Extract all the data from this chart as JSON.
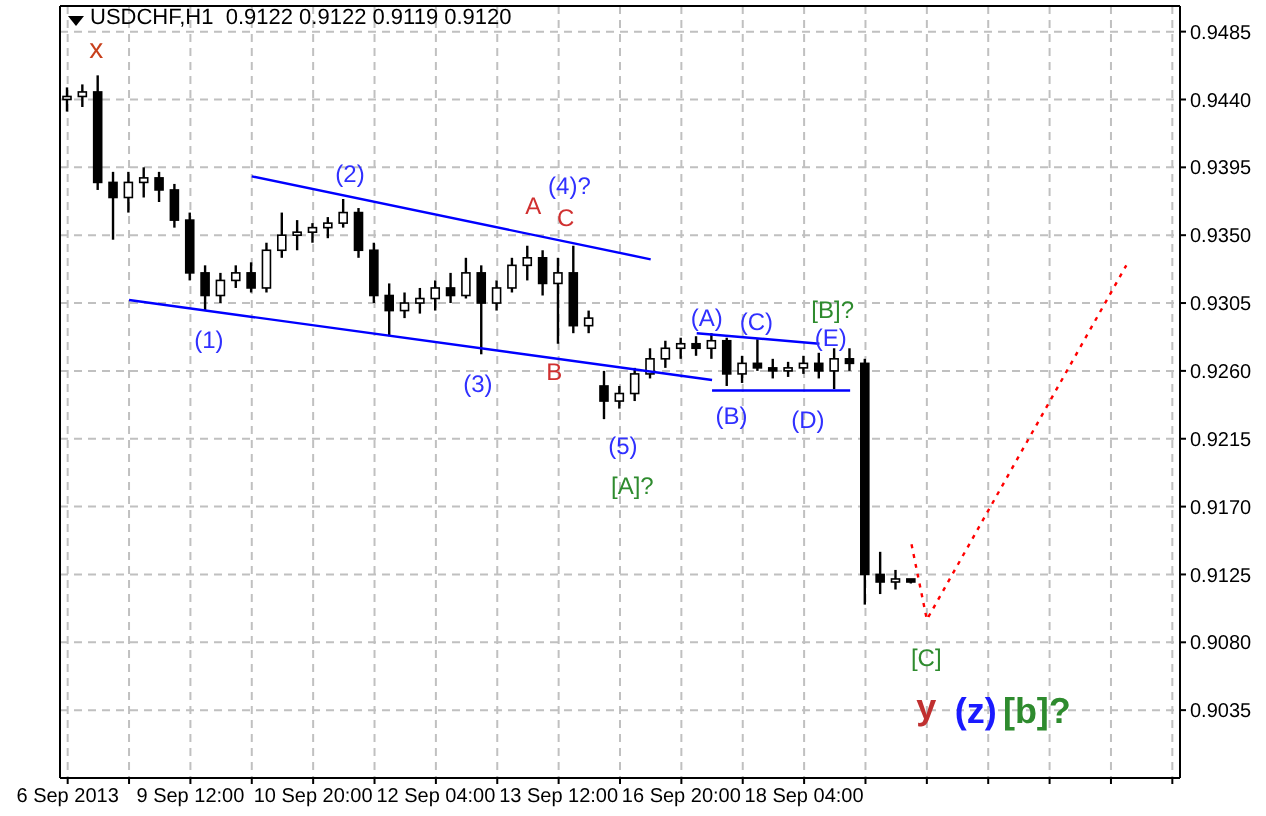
{
  "chart_data": {
    "type": "candlestick",
    "title": "USDCHF,H1  0.9122 0.9122 0.9119 0.9120",
    "categories": [
      "6 Sep 2013",
      null,
      null,
      null,
      null,
      null,
      null,
      null,
      "9 Sep 12:00",
      null,
      null,
      null,
      null,
      null,
      null,
      null,
      "10 Sep 20:00",
      null,
      null,
      null,
      null,
      null,
      null,
      null,
      "12 Sep 04:00",
      null,
      null,
      null,
      null,
      null,
      null,
      null,
      "13 Sep 12:00",
      null,
      null,
      null,
      null,
      null,
      null,
      null,
      "16 Sep 20:00",
      null,
      null,
      null,
      null,
      null,
      null,
      null,
      "18 Sep 04:00",
      null,
      null,
      null,
      null,
      null,
      null,
      null,
      null,
      null,
      null,
      null,
      null,
      null,
      null,
      null,
      null,
      null,
      null,
      null,
      null,
      null,
      null,
      null,
      null
    ],
    "ohlc": [
      [
        0.944,
        0.9448,
        0.9432,
        0.9442
      ],
      [
        0.9442,
        0.945,
        0.9435,
        0.9445
      ],
      [
        0.9445,
        0.9456,
        0.938,
        0.9385
      ],
      [
        0.9385,
        0.9392,
        0.9347,
        0.9375
      ],
      [
        0.9375,
        0.9392,
        0.9365,
        0.9385
      ],
      [
        0.9385,
        0.9395,
        0.9375,
        0.9388
      ],
      [
        0.9388,
        0.9392,
        0.9372,
        0.938
      ],
      [
        0.938,
        0.9384,
        0.9355,
        0.936
      ],
      [
        0.936,
        0.9365,
        0.932,
        0.9325
      ],
      [
        0.9325,
        0.933,
        0.93,
        0.931
      ],
      [
        0.931,
        0.9325,
        0.9305,
        0.932
      ],
      [
        0.932,
        0.933,
        0.9315,
        0.9325
      ],
      [
        0.9325,
        0.9332,
        0.9312,
        0.9315
      ],
      [
        0.9315,
        0.9345,
        0.9312,
        0.934
      ],
      [
        0.934,
        0.9365,
        0.9335,
        0.935
      ],
      [
        0.935,
        0.936,
        0.934,
        0.9352
      ],
      [
        0.9352,
        0.9358,
        0.9345,
        0.9355
      ],
      [
        0.9355,
        0.9362,
        0.9348,
        0.9358
      ],
      [
        0.9358,
        0.9374,
        0.9355,
        0.9365
      ],
      [
        0.9365,
        0.9368,
        0.9335,
        0.934
      ],
      [
        0.934,
        0.9345,
        0.9305,
        0.931
      ],
      [
        0.931,
        0.9318,
        0.9283,
        0.93
      ],
      [
        0.93,
        0.9312,
        0.9295,
        0.9305
      ],
      [
        0.9305,
        0.9315,
        0.9298,
        0.9308
      ],
      [
        0.9308,
        0.932,
        0.93,
        0.9315
      ],
      [
        0.9315,
        0.9325,
        0.9305,
        0.931
      ],
      [
        0.931,
        0.9335,
        0.9308,
        0.9325
      ],
      [
        0.9325,
        0.933,
        0.9271,
        0.9305
      ],
      [
        0.9305,
        0.932,
        0.93,
        0.9315
      ],
      [
        0.9315,
        0.9335,
        0.9312,
        0.933
      ],
      [
        0.933,
        0.9343,
        0.932,
        0.9335
      ],
      [
        0.9335,
        0.934,
        0.931,
        0.9318
      ],
      [
        0.9318,
        0.9335,
        0.9278,
        0.9325
      ],
      [
        0.9325,
        0.9343,
        0.9285,
        0.929
      ],
      [
        0.929,
        0.93,
        0.9285,
        0.9295
      ],
      [
        0.925,
        0.926,
        0.9228,
        0.924
      ],
      [
        0.924,
        0.925,
        0.9235,
        0.9245
      ],
      [
        0.9245,
        0.9262,
        0.924,
        0.9258
      ],
      [
        0.9258,
        0.9275,
        0.9255,
        0.9268
      ],
      [
        0.9268,
        0.928,
        0.9262,
        0.9275
      ],
      [
        0.9275,
        0.9282,
        0.9268,
        0.9278
      ],
      [
        0.9278,
        0.9283,
        0.927,
        0.9275
      ],
      [
        0.9275,
        0.9285,
        0.9268,
        0.928
      ],
      [
        0.928,
        0.9282,
        0.925,
        0.9258
      ],
      [
        0.9258,
        0.927,
        0.9252,
        0.9265
      ],
      [
        0.9265,
        0.9281,
        0.926,
        0.9262
      ],
      [
        0.9262,
        0.9268,
        0.9255,
        0.926
      ],
      [
        0.926,
        0.9266,
        0.9256,
        0.9262
      ],
      [
        0.9262,
        0.927,
        0.9258,
        0.9265
      ],
      [
        0.9265,
        0.9272,
        0.9255,
        0.926
      ],
      [
        0.926,
        0.9275,
        0.9248,
        0.9268
      ],
      [
        0.9268,
        0.9275,
        0.926,
        0.9265
      ],
      [
        0.9265,
        0.9268,
        0.9105,
        0.9125
      ],
      [
        0.9125,
        0.914,
        0.9112,
        0.912
      ],
      [
        0.912,
        0.9128,
        0.9115,
        0.9122
      ],
      [
        0.9122,
        0.9122,
        0.9119,
        0.912
      ],
      null,
      null,
      null,
      null,
      null,
      null,
      null,
      null,
      null,
      null,
      null,
      null,
      null,
      null,
      null,
      null,
      null
    ],
    "series": [
      {
        "type": "line",
        "color": "#0000ff",
        "line_style": "solid",
        "values": [
          null,
          null,
          null,
          null,
          null,
          null,
          null,
          null,
          null,
          null,
          null,
          null,
          0.9389,
          null,
          null,
          null,
          null,
          null,
          null,
          null,
          null,
          null,
          null,
          null,
          null,
          null,
          null,
          null,
          null,
          null,
          null,
          null,
          null,
          null,
          null,
          null,
          null,
          null,
          0.9334,
          null,
          null,
          null,
          null,
          null,
          null,
          null,
          null,
          null,
          null,
          null,
          null,
          null,
          null,
          null,
          null,
          null,
          null,
          null,
          null,
          null,
          null,
          null,
          null,
          null,
          null,
          null,
          null,
          null,
          null,
          null,
          null,
          null,
          null
        ]
      },
      {
        "type": "line",
        "color": "#0000ff",
        "line_style": "solid",
        "values": [
          null,
          null,
          null,
          null,
          0.9307,
          null,
          null,
          null,
          null,
          null,
          null,
          null,
          null,
          null,
          null,
          null,
          null,
          null,
          null,
          null,
          null,
          null,
          null,
          null,
          null,
          null,
          null,
          null,
          null,
          null,
          null,
          null,
          null,
          null,
          null,
          null,
          null,
          null,
          null,
          null,
          null,
          null,
          0.9254,
          null,
          null,
          null,
          null,
          null,
          null,
          null,
          null,
          null,
          null,
          null,
          null,
          null,
          null,
          null,
          null,
          null,
          null,
          null,
          null,
          null,
          null,
          null,
          null,
          null,
          null,
          null,
          null,
          null,
          null
        ]
      },
      {
        "type": "line",
        "color": "#0000ff",
        "line_style": "solid",
        "values": [
          null,
          null,
          null,
          null,
          null,
          null,
          null,
          null,
          null,
          null,
          null,
          null,
          null,
          null,
          null,
          null,
          null,
          null,
          null,
          null,
          null,
          null,
          null,
          null,
          null,
          null,
          null,
          null,
          null,
          null,
          null,
          null,
          null,
          null,
          null,
          null,
          null,
          null,
          null,
          null,
          null,
          0.9285,
          null,
          null,
          null,
          null,
          null,
          null,
          null,
          0.9278,
          null,
          null,
          null,
          null,
          null,
          null,
          null,
          null,
          null,
          null,
          null,
          null,
          null,
          null,
          null,
          null,
          null,
          null,
          null,
          null,
          null,
          null,
          null
        ]
      },
      {
        "type": "line",
        "color": "#0000ff",
        "line_style": "solid",
        "values": [
          null,
          null,
          null,
          null,
          null,
          null,
          null,
          null,
          null,
          null,
          null,
          null,
          null,
          null,
          null,
          null,
          null,
          null,
          null,
          null,
          null,
          null,
          null,
          null,
          null,
          null,
          null,
          null,
          null,
          null,
          null,
          null,
          null,
          null,
          null,
          null,
          null,
          null,
          null,
          null,
          null,
          null,
          0.9247,
          null,
          null,
          null,
          null,
          null,
          null,
          null,
          null,
          0.9247,
          null,
          null,
          null,
          null,
          null,
          null,
          null,
          null,
          null,
          null,
          null,
          null,
          null,
          null,
          null,
          null,
          null,
          null,
          null,
          null,
          null
        ]
      },
      {
        "type": "line",
        "color": "#ff0000",
        "line_style": "dotted",
        "values": [
          null,
          null,
          null,
          null,
          null,
          null,
          null,
          null,
          null,
          null,
          null,
          null,
          null,
          null,
          null,
          null,
          null,
          null,
          null,
          null,
          null,
          null,
          null,
          null,
          null,
          null,
          null,
          null,
          null,
          null,
          null,
          null,
          null,
          null,
          null,
          null,
          null,
          null,
          null,
          null,
          null,
          null,
          null,
          null,
          null,
          null,
          null,
          null,
          null,
          null,
          null,
          null,
          null,
          null,
          null,
          0.9145,
          0.9095,
          null,
          null,
          null,
          null,
          null,
          null,
          null,
          null,
          null,
          null,
          null,
          null,
          0.933,
          null,
          null,
          null
        ]
      }
    ],
    "ylim": [
      0.899,
      0.9502
    ],
    "yticks": [
      0.9035,
      {
        "value": 0.908,
        "label": "0.9080"
      },
      0.9125,
      {
        "value": 0.917,
        "label": "0.9170"
      },
      0.9215,
      {
        "value": 0.926,
        "label": "0.9260"
      },
      0.9305,
      {
        "value": 0.935,
        "label": "0.9350"
      },
      0.9395,
      {
        "value": 0.944,
        "label": "0.9440"
      },
      0.9485
    ],
    "grid": true,
    "annotations": [
      "x",
      "(1)",
      "(2)",
      "(3)",
      "(4)?",
      "A",
      "C",
      "B",
      "(5)",
      "[A]?",
      "(A)",
      "(B)",
      "(C)",
      "(D)",
      "(E)",
      "[B]?",
      "[C]",
      "y",
      "(z)",
      "[b]?"
    ]
  }
}
